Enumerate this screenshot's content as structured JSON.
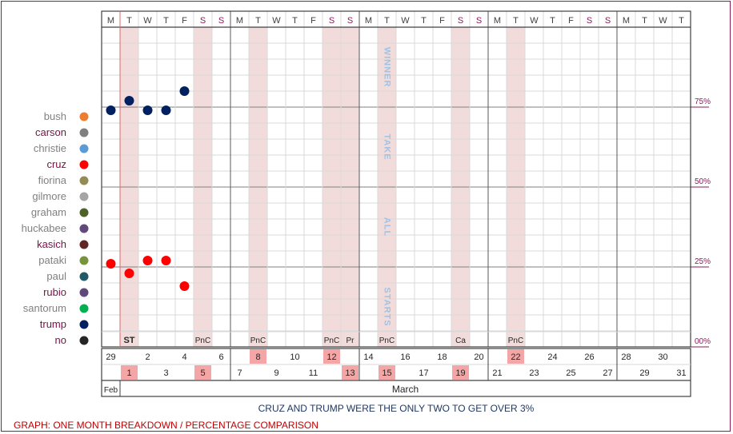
{
  "chart_data": {
    "type": "scatter",
    "caption": "CRUZ AND TRUMP WERE THE ONLY TWO TO GET OVER 3%",
    "footer": "GRAPH: ONE MONTH BREAKDOWN / PERCENTAGE COMPARISON",
    "day_letters": [
      "M",
      "T",
      "W",
      "T",
      "F",
      "S",
      "S",
      "M",
      "T",
      "W",
      "T",
      "F",
      "S",
      "S",
      "M",
      "T",
      "W",
      "T",
      "F",
      "S",
      "S",
      "M",
      "T",
      "W",
      "T",
      "F",
      "S",
      "S",
      "M",
      "T",
      "W",
      "T"
    ],
    "dates": [
      29,
      1,
      2,
      3,
      4,
      5,
      6,
      7,
      8,
      9,
      10,
      11,
      12,
      13,
      14,
      15,
      16,
      17,
      18,
      19,
      20,
      21,
      22,
      23,
      24,
      25,
      26,
      27,
      28,
      29,
      30,
      31
    ],
    "highlighted_days": [
      1,
      5,
      8,
      12,
      13,
      15,
      19,
      22
    ],
    "month_labels": [
      {
        "label": "Feb",
        "from": 0,
        "to": 0
      },
      {
        "label": "March",
        "from": 1,
        "to": 31
      }
    ],
    "event_labels": [
      {
        "day": 1,
        "text": "ST",
        "bold": true
      },
      {
        "day": 5,
        "text": "PnC"
      },
      {
        "day": 8,
        "text": "PnC"
      },
      {
        "day": 12,
        "text": "PnC"
      },
      {
        "day": 13,
        "text": "Pr"
      },
      {
        "day": 15,
        "text": "PnC"
      },
      {
        "day": 19,
        "text": "Ca"
      },
      {
        "day": 22,
        "text": "PnC"
      }
    ],
    "ylim": [
      0,
      100
    ],
    "y_ticks": [
      "00%",
      "25%",
      "50%",
      "75%"
    ],
    "vertical_words": [
      "WINNER",
      "TAKE",
      "ALL",
      "STARTS"
    ],
    "candidates": [
      {
        "name": "bush",
        "color": "#ed7d31",
        "emphasis": false
      },
      {
        "name": "carson",
        "color": "#7f7f7f",
        "emphasis": true
      },
      {
        "name": "christie",
        "color": "#5b9bd5",
        "emphasis": false
      },
      {
        "name": "cruz",
        "color": "#ff0000",
        "emphasis": true
      },
      {
        "name": "fiorina",
        "color": "#948a54",
        "emphasis": false
      },
      {
        "name": "gilmore",
        "color": "#a5a5a5",
        "emphasis": false
      },
      {
        "name": "graham",
        "color": "#4f6228",
        "emphasis": false
      },
      {
        "name": "huckabee",
        "color": "#604a7b",
        "emphasis": false
      },
      {
        "name": "kasich",
        "color": "#632523",
        "emphasis": true
      },
      {
        "name": "pataki",
        "color": "#77933c",
        "emphasis": false
      },
      {
        "name": "paul",
        "color": "#215967",
        "emphasis": false
      },
      {
        "name": "rubio",
        "color": "#5f497a",
        "emphasis": true
      },
      {
        "name": "santorum",
        "color": "#00b050",
        "emphasis": false
      },
      {
        "name": "trump",
        "color": "#002060",
        "emphasis": true
      },
      {
        "name": "no",
        "color": "#262626",
        "emphasis": true
      }
    ],
    "series": [
      {
        "candidate": "trump",
        "color": "#002060",
        "points": [
          {
            "day": 0,
            "value": 74
          },
          {
            "day": 1,
            "value": 77
          },
          {
            "day": 2,
            "value": 74
          },
          {
            "day": 3,
            "value": 74
          },
          {
            "day": 4,
            "value": 80
          }
        ]
      },
      {
        "candidate": "cruz",
        "color": "#ff0000",
        "points": [
          {
            "day": 0,
            "value": 26
          },
          {
            "day": 1,
            "value": 23
          },
          {
            "day": 2,
            "value": 27
          },
          {
            "day": 3,
            "value": 27
          },
          {
            "day": 4,
            "value": 19
          }
        ]
      }
    ]
  }
}
